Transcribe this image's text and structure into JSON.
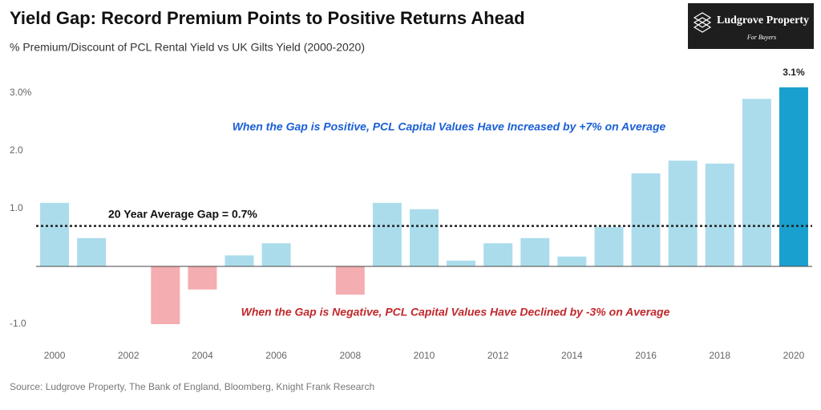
{
  "chart_data": {
    "type": "bar",
    "title": "Yield Gap: Record Premium Points to Positive Returns Ahead",
    "subtitle": "% Premium/Discount of PCL Rental Yield vs UK Gilts Yield (2000-2020)",
    "source": "Source: Ludgrove Property, The Bank of England, Bloomberg, Knight Frank Research",
    "logo": {
      "name": "Ludgrove Property",
      "tagline": "For Buyers"
    },
    "categories": [
      "2000",
      null,
      "2002",
      null,
      "2004",
      null,
      "2006",
      null,
      "2008",
      null,
      "2010",
      null,
      "2012",
      null,
      "2014",
      null,
      "2016",
      null,
      "2018",
      null,
      "2020"
    ],
    "values": [
      1.1,
      0.49,
      0,
      -1.0,
      -0.4,
      0.19,
      0.4,
      0,
      -0.49,
      1.1,
      0.99,
      0.1,
      0.4,
      0.49,
      0.17,
      0.68,
      1.61,
      1.83,
      1.78,
      2.9,
      3.1
    ],
    "value_labels": [
      null,
      null,
      null,
      null,
      null,
      null,
      null,
      null,
      null,
      null,
      null,
      null,
      null,
      null,
      null,
      null,
      null,
      null,
      null,
      null,
      "3.1%"
    ],
    "colors": [
      "#abdcec",
      "#abdcec",
      "#abdcec",
      "#f4adb0",
      "#f4adb0",
      "#abdcec",
      "#abdcec",
      "#abdcec",
      "#f4adb0",
      "#abdcec",
      "#abdcec",
      "#abdcec",
      "#abdcec",
      "#abdcec",
      "#abdcec",
      "#abdcec",
      "#abdcec",
      "#abdcec",
      "#abdcec",
      "#abdcec",
      "#1aa0cf"
    ],
    "ylim": [
      -1.2,
      3.2
    ],
    "yticks": [
      {
        "value": -1,
        "label": "-1.0"
      },
      {
        "value": 1,
        "label": "1.0"
      },
      {
        "value": 2,
        "label": "2.0"
      },
      {
        "value": 3,
        "label": "3.0%"
      }
    ],
    "average": {
      "value": 0.7,
      "label": "20 Year Average Gap = 0.7%"
    },
    "annotations": [
      "When the Gap is Positive, PCL Capital Values Have Increased by +7% on Average",
      "When the Gap is Negative, PCL Capital Values Have Declined by -3% on Average"
    ]
  }
}
